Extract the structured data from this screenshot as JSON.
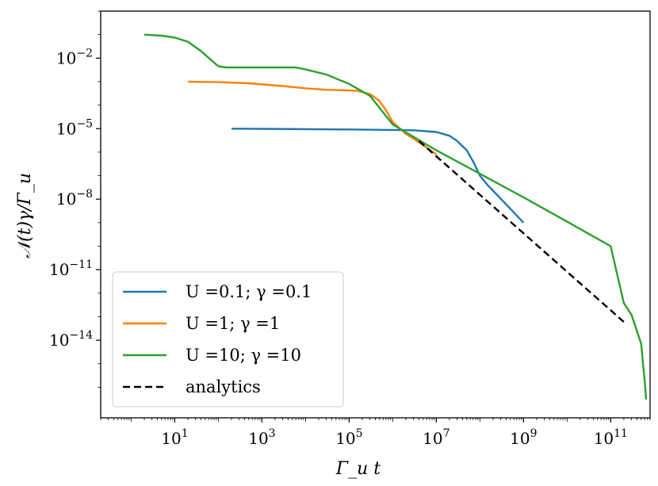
{
  "chart_data": {
    "type": "line",
    "x_scale": "log",
    "y_scale": "log",
    "xlim": [
      0.2,
      800000000000.0
    ],
    "ylim": [
      5e-18,
      1
    ],
    "xlabel": "Γ_u t",
    "ylabel": "𝒩(t)γ/Γ_u",
    "x_ticks": [
      {
        "value": 10,
        "base": "10",
        "exp": "1"
      },
      {
        "value": 1000,
        "base": "10",
        "exp": "3"
      },
      {
        "value": 100000,
        "base": "10",
        "exp": "5"
      },
      {
        "value": 10000000,
        "base": "10",
        "exp": "7"
      },
      {
        "value": 1000000000,
        "base": "10",
        "exp": "9"
      },
      {
        "value": 100000000000,
        "base": "10",
        "exp": "11"
      }
    ],
    "y_ticks": [
      {
        "value": 0.01,
        "base": "10",
        "exp": "−2"
      },
      {
        "value": 1e-05,
        "base": "10",
        "exp": "−5"
      },
      {
        "value": 1e-08,
        "base": "10",
        "exp": "−8"
      },
      {
        "value": 1e-11,
        "base": "10",
        "exp": "−11"
      },
      {
        "value": 1e-14,
        "base": "10",
        "exp": "−14"
      }
    ],
    "legend_position": "lower-left",
    "series": [
      {
        "name": "U =0.1; γ =0.1",
        "color": "#1f77b4",
        "dash": "solid",
        "points": [
          [
            200,
            1e-05
          ],
          [
            1000.0,
            9.8e-06
          ],
          [
            10000.0,
            9.5e-06
          ],
          [
            100000.0,
            9.2e-06
          ],
          [
            1000000.0,
            8.8e-06
          ],
          [
            3000000.0,
            8.5e-06
          ],
          [
            10000000.0,
            7.2e-06
          ],
          [
            20000000.0,
            5e-06
          ],
          [
            30000000.0,
            3e-06
          ],
          [
            50000000.0,
            1.2e-06
          ],
          [
            70000000.0,
            4e-07
          ],
          [
            100000000.0,
            1e-07
          ],
          [
            150000000.0,
            4e-08
          ],
          [
            200000000.0,
            2.3e-08
          ],
          [
            400000000.0,
            6e-09
          ],
          [
            1000000000.0,
            1e-09
          ]
        ]
      },
      {
        "name": "U =1; γ =1",
        "color": "#ff7f0e",
        "dash": "solid",
        "points": [
          [
            20,
            0.001
          ],
          [
            100,
            0.00095
          ],
          [
            500,
            0.00085
          ],
          [
            3000.0,
            0.00065
          ],
          [
            10000.0,
            0.00052
          ],
          [
            30000.0,
            0.00045
          ],
          [
            70000.0,
            0.00043
          ],
          [
            150000.0,
            0.00041
          ],
          [
            300000.0,
            0.0003
          ],
          [
            500000.0,
            0.00015
          ],
          [
            700000.0,
            6e-05
          ],
          [
            1000000.0,
            1.9e-05
          ],
          [
            2000000.0,
            6e-06
          ],
          [
            5000000.0,
            2e-06
          ],
          [
            10000000.0,
            8e-07
          ]
        ]
      },
      {
        "name": "U =10; γ =10",
        "color": "#2ca02c",
        "dash": "solid",
        "points": [
          [
            2,
            0.1
          ],
          [
            5,
            0.09
          ],
          [
            10,
            0.075
          ],
          [
            20,
            0.05
          ],
          [
            40,
            0.02
          ],
          [
            70,
            0.008
          ],
          [
            100,
            0.0045
          ],
          [
            150,
            0.004
          ],
          [
            1000.0,
            0.004
          ],
          [
            3000.0,
            0.004
          ],
          [
            6000.0,
            0.004
          ],
          [
            10000.0,
            0.0033
          ],
          [
            30000.0,
            0.002
          ],
          [
            100000.0,
            0.0008
          ],
          [
            300000.0,
            0.00025
          ],
          [
            1000000.0,
            1.5e-05
          ],
          [
            10000000.0,
            1.2e-06
          ],
          [
            100000000.0,
            1.2e-07
          ],
          [
            1000000000.0,
            1.2e-08
          ],
          [
            10000000000.0,
            1.1e-09
          ],
          [
            100000000000.0,
            1e-10
          ],
          [
            200000000000.0,
            3.8e-13
          ],
          [
            300000000000.0,
            1.2e-13
          ],
          [
            500000000000.0,
            7e-15
          ],
          [
            550000000000.0,
            1e-15
          ],
          [
            600000000000.0,
            2e-16
          ],
          [
            650000000000.0,
            3e-17
          ]
        ]
      },
      {
        "name": "analytics",
        "color": "#000000",
        "dash": "dashed",
        "points": [
          [
            4000000.0,
            3e-06
          ],
          [
            200000000000.0,
            6e-14
          ]
        ]
      }
    ]
  }
}
